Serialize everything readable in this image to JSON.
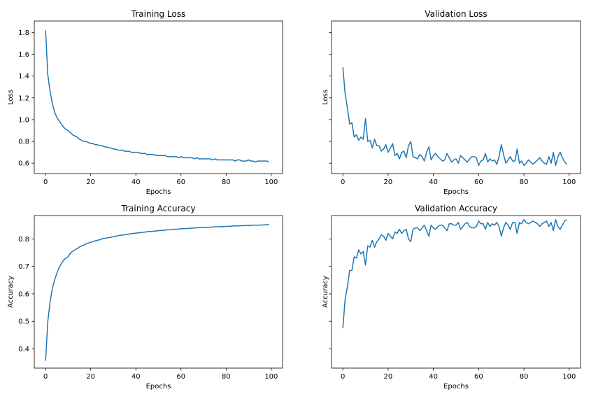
{
  "chart_data": [
    {
      "type": "line",
      "title": "Training Loss",
      "xlabel": "Epochs",
      "ylabel": "Loss",
      "xlim": [
        -5,
        105
      ],
      "ylim": [
        0.505,
        1.905
      ],
      "xticks": [
        0,
        20,
        40,
        60,
        80,
        100
      ],
      "yticks": [
        0.6,
        0.8,
        1.0,
        1.2,
        1.4,
        1.6,
        1.8
      ],
      "ytick_labels": [
        "0.6",
        "0.8",
        "1.0",
        "1.2",
        "1.4",
        "1.6",
        "1.8"
      ],
      "show_ytick_labels": true,
      "color": "#1f77b4",
      "series": [
        {
          "x": [
            0,
            1,
            2,
            3,
            4,
            5,
            6,
            7,
            8,
            9,
            10,
            11,
            12,
            13,
            14,
            15,
            16,
            17,
            18,
            19,
            20,
            21,
            22,
            23,
            24,
            25,
            26,
            27,
            28,
            29,
            30,
            31,
            32,
            33,
            34,
            35,
            36,
            37,
            38,
            39,
            40,
            41,
            42,
            43,
            44,
            45,
            46,
            47,
            48,
            49,
            50,
            51,
            52,
            53,
            54,
            55,
            56,
            57,
            58,
            59,
            60,
            61,
            62,
            63,
            64,
            65,
            66,
            67,
            68,
            69,
            70,
            71,
            72,
            73,
            74,
            75,
            76,
            77,
            78,
            79,
            80,
            81,
            82,
            83,
            84,
            85,
            86,
            87,
            88,
            89,
            90,
            91,
            92,
            93,
            94,
            95,
            96,
            97,
            98,
            99
          ],
          "values": [
            1.82,
            1.41,
            1.26,
            1.15,
            1.07,
            1.02,
            0.99,
            0.96,
            0.93,
            0.91,
            0.9,
            0.88,
            0.86,
            0.85,
            0.84,
            0.82,
            0.81,
            0.8,
            0.8,
            0.79,
            0.78,
            0.78,
            0.77,
            0.77,
            0.76,
            0.76,
            0.75,
            0.75,
            0.74,
            0.74,
            0.73,
            0.73,
            0.72,
            0.72,
            0.72,
            0.71,
            0.71,
            0.71,
            0.7,
            0.7,
            0.7,
            0.7,
            0.69,
            0.69,
            0.69,
            0.68,
            0.68,
            0.68,
            0.68,
            0.67,
            0.67,
            0.67,
            0.67,
            0.67,
            0.66,
            0.66,
            0.66,
            0.66,
            0.66,
            0.65,
            0.66,
            0.65,
            0.65,
            0.65,
            0.65,
            0.65,
            0.64,
            0.65,
            0.64,
            0.64,
            0.64,
            0.64,
            0.64,
            0.64,
            0.63,
            0.64,
            0.63,
            0.63,
            0.63,
            0.63,
            0.63,
            0.63,
            0.63,
            0.63,
            0.62,
            0.63,
            0.63,
            0.62,
            0.62,
            0.62,
            0.63,
            0.62,
            0.62,
            0.61,
            0.62,
            0.62,
            0.62,
            0.62,
            0.62,
            0.61
          ]
        }
      ]
    },
    {
      "type": "line",
      "title": "Validation Loss",
      "xlabel": "Epochs",
      "ylabel": "Loss",
      "xlim": [
        -5,
        105
      ],
      "ylim": [
        0.505,
        1.905
      ],
      "xticks": [
        0,
        20,
        40,
        60,
        80,
        100
      ],
      "yticks": [
        0.6,
        0.8,
        1.0,
        1.2,
        1.4,
        1.6,
        1.8
      ],
      "ytick_labels": [
        "0.6",
        "0.8",
        "1.0",
        "1.2",
        "1.4",
        "1.6",
        "1.8"
      ],
      "show_ytick_labels": false,
      "color": "#1f77b4",
      "series": [
        {
          "x": [
            0,
            1,
            2,
            3,
            4,
            5,
            6,
            7,
            8,
            9,
            10,
            11,
            12,
            13,
            14,
            15,
            16,
            17,
            18,
            19,
            20,
            21,
            22,
            23,
            24,
            25,
            26,
            27,
            28,
            29,
            30,
            31,
            32,
            33,
            34,
            35,
            36,
            37,
            38,
            39,
            40,
            41,
            42,
            43,
            44,
            45,
            46,
            47,
            48,
            49,
            50,
            51,
            52,
            53,
            54,
            55,
            56,
            57,
            58,
            59,
            60,
            61,
            62,
            63,
            64,
            65,
            66,
            67,
            68,
            69,
            70,
            71,
            72,
            73,
            74,
            75,
            76,
            77,
            78,
            79,
            80,
            81,
            82,
            83,
            84,
            85,
            86,
            87,
            88,
            89,
            90,
            91,
            92,
            93,
            94,
            95,
            96,
            97,
            98,
            99
          ],
          "values": [
            1.48,
            1.24,
            1.11,
            0.96,
            0.97,
            0.84,
            0.86,
            0.81,
            0.84,
            0.82,
            1.01,
            0.8,
            0.81,
            0.74,
            0.82,
            0.76,
            0.76,
            0.71,
            0.73,
            0.77,
            0.7,
            0.74,
            0.78,
            0.67,
            0.69,
            0.64,
            0.7,
            0.71,
            0.65,
            0.76,
            0.8,
            0.66,
            0.65,
            0.64,
            0.68,
            0.66,
            0.62,
            0.7,
            0.75,
            0.63,
            0.67,
            0.69,
            0.66,
            0.64,
            0.62,
            0.63,
            0.69,
            0.65,
            0.61,
            0.63,
            0.64,
            0.6,
            0.67,
            0.65,
            0.63,
            0.61,
            0.64,
            0.66,
            0.66,
            0.65,
            0.58,
            0.62,
            0.63,
            0.69,
            0.61,
            0.64,
            0.62,
            0.63,
            0.59,
            0.66,
            0.77,
            0.68,
            0.6,
            0.63,
            0.66,
            0.62,
            0.62,
            0.73,
            0.6,
            0.62,
            0.58,
            0.6,
            0.63,
            0.61,
            0.59,
            0.61,
            0.63,
            0.65,
            0.62,
            0.6,
            0.59,
            0.66,
            0.6,
            0.7,
            0.58,
            0.66,
            0.7,
            0.65,
            0.61,
            0.59
          ]
        }
      ]
    },
    {
      "type": "line",
      "title": "Training Accuracy",
      "xlabel": "Epochs",
      "ylabel": "Accuracy",
      "xlim": [
        -5,
        105
      ],
      "ylim": [
        0.33,
        0.885
      ],
      "xticks": [
        0,
        20,
        40,
        60,
        80,
        100
      ],
      "yticks": [
        0.4,
        0.5,
        0.6,
        0.7,
        0.8
      ],
      "ytick_labels": [
        "0.4",
        "0.5",
        "0.6",
        "0.7",
        "0.8"
      ],
      "show_ytick_labels": true,
      "color": "#1f77b4",
      "series": [
        {
          "x": [
            0,
            1,
            2,
            3,
            4,
            5,
            6,
            7,
            8,
            9,
            10,
            11,
            12,
            13,
            14,
            15,
            16,
            17,
            18,
            19,
            20,
            21,
            22,
            23,
            24,
            25,
            26,
            27,
            28,
            29,
            30,
            31,
            32,
            33,
            34,
            35,
            36,
            37,
            38,
            39,
            40,
            41,
            42,
            43,
            44,
            45,
            46,
            47,
            48,
            49,
            50,
            51,
            52,
            53,
            54,
            55,
            56,
            57,
            58,
            59,
            60,
            61,
            62,
            63,
            64,
            65,
            66,
            67,
            68,
            69,
            70,
            71,
            72,
            73,
            74,
            75,
            76,
            77,
            78,
            79,
            80,
            81,
            82,
            83,
            84,
            85,
            86,
            87,
            88,
            89,
            90,
            91,
            92,
            93,
            94,
            95,
            96,
            97,
            98,
            99
          ],
          "values": [
            0.357,
            0.5,
            0.57,
            0.62,
            0.65,
            0.675,
            0.695,
            0.71,
            0.723,
            0.73,
            0.735,
            0.748,
            0.755,
            0.76,
            0.765,
            0.77,
            0.775,
            0.778,
            0.782,
            0.785,
            0.788,
            0.79,
            0.793,
            0.795,
            0.797,
            0.8,
            0.802,
            0.803,
            0.805,
            0.806,
            0.808,
            0.81,
            0.811,
            0.813,
            0.814,
            0.815,
            0.817,
            0.818,
            0.819,
            0.82,
            0.821,
            0.822,
            0.823,
            0.824,
            0.825,
            0.826,
            0.827,
            0.827,
            0.828,
            0.829,
            0.83,
            0.831,
            0.831,
            0.832,
            0.833,
            0.833,
            0.834,
            0.835,
            0.835,
            0.836,
            0.837,
            0.837,
            0.838,
            0.838,
            0.839,
            0.839,
            0.84,
            0.84,
            0.841,
            0.841,
            0.842,
            0.842,
            0.842,
            0.843,
            0.843,
            0.844,
            0.844,
            0.844,
            0.845,
            0.845,
            0.846,
            0.846,
            0.846,
            0.847,
            0.847,
            0.847,
            0.848,
            0.848,
            0.848,
            0.849,
            0.849,
            0.849,
            0.85,
            0.85,
            0.85,
            0.85,
            0.851,
            0.851,
            0.852,
            0.853
          ]
        }
      ]
    },
    {
      "type": "line",
      "title": "Validation Accuracy",
      "xlabel": "Epochs",
      "ylabel": "Accuracy",
      "xlim": [
        -5,
        105
      ],
      "ylim": [
        0.33,
        0.885
      ],
      "xticks": [
        0,
        20,
        40,
        60,
        80,
        100
      ],
      "yticks": [
        0.4,
        0.5,
        0.6,
        0.7,
        0.8
      ],
      "ytick_labels": [
        "0.4",
        "0.5",
        "0.6",
        "0.7",
        "0.8"
      ],
      "show_ytick_labels": false,
      "color": "#1f77b4",
      "series": [
        {
          "x": [
            0,
            1,
            2,
            3,
            4,
            5,
            6,
            7,
            8,
            9,
            10,
            11,
            12,
            13,
            14,
            15,
            16,
            17,
            18,
            19,
            20,
            21,
            22,
            23,
            24,
            25,
            26,
            27,
            28,
            29,
            30,
            31,
            32,
            33,
            34,
            35,
            36,
            37,
            38,
            39,
            40,
            41,
            42,
            43,
            44,
            45,
            46,
            47,
            48,
            49,
            50,
            51,
            52,
            53,
            54,
            55,
            56,
            57,
            58,
            59,
            60,
            61,
            62,
            63,
            64,
            65,
            66,
            67,
            68,
            69,
            70,
            71,
            72,
            73,
            74,
            75,
            76,
            77,
            78,
            79,
            80,
            81,
            82,
            83,
            84,
            85,
            86,
            87,
            88,
            89,
            90,
            91,
            92,
            93,
            94,
            95,
            96,
            97,
            98,
            99
          ],
          "values": [
            0.475,
            0.58,
            0.625,
            0.685,
            0.685,
            0.735,
            0.73,
            0.76,
            0.745,
            0.755,
            0.705,
            0.775,
            0.77,
            0.795,
            0.77,
            0.79,
            0.8,
            0.815,
            0.81,
            0.795,
            0.82,
            0.81,
            0.8,
            0.825,
            0.82,
            0.835,
            0.82,
            0.83,
            0.835,
            0.8,
            0.79,
            0.835,
            0.84,
            0.84,
            0.83,
            0.84,
            0.85,
            0.83,
            0.81,
            0.85,
            0.84,
            0.835,
            0.845,
            0.85,
            0.85,
            0.84,
            0.83,
            0.855,
            0.855,
            0.85,
            0.85,
            0.86,
            0.835,
            0.845,
            0.855,
            0.86,
            0.845,
            0.84,
            0.84,
            0.845,
            0.865,
            0.855,
            0.855,
            0.835,
            0.86,
            0.845,
            0.855,
            0.85,
            0.86,
            0.845,
            0.81,
            0.84,
            0.86,
            0.85,
            0.835,
            0.86,
            0.86,
            0.82,
            0.86,
            0.855,
            0.87,
            0.86,
            0.855,
            0.86,
            0.865,
            0.86,
            0.855,
            0.845,
            0.855,
            0.86,
            0.865,
            0.845,
            0.86,
            0.83,
            0.87,
            0.845,
            0.835,
            0.85,
            0.865,
            0.87
          ]
        }
      ]
    }
  ]
}
